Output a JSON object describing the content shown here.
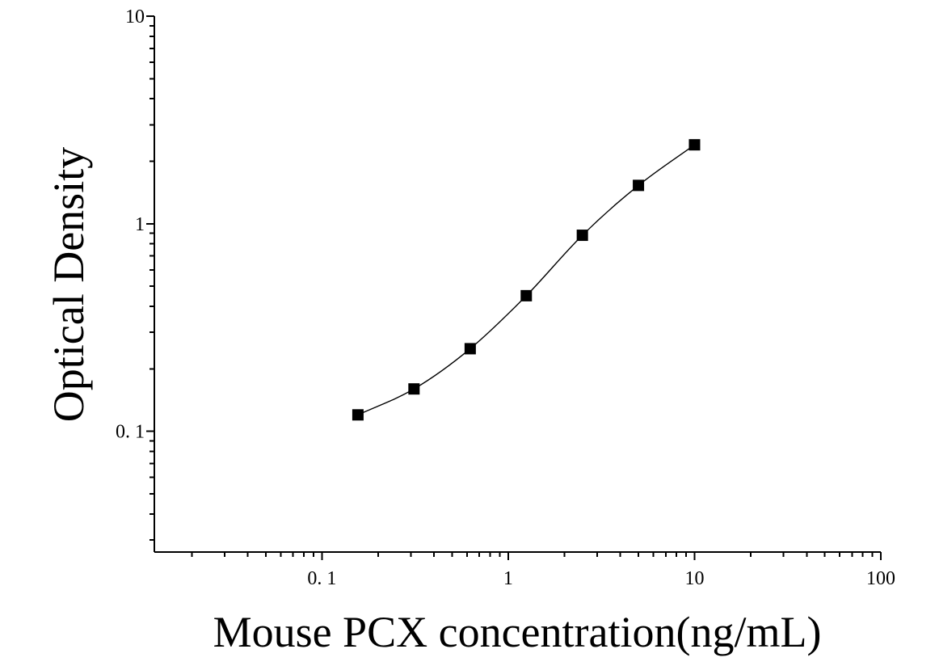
{
  "chart_data": {
    "type": "scatter",
    "title": "",
    "xlabel": "Mouse PCX concentration(ng/mL)",
    "ylabel": "Optical Density",
    "xscale": "log",
    "yscale": "log",
    "xlim": [
      0.0126,
      100
    ],
    "ylim": [
      0.0262,
      10
    ],
    "x_ticks": [
      {
        "value": 0.1,
        "label": "0. 1"
      },
      {
        "value": 1,
        "label": "1"
      },
      {
        "value": 10,
        "label": "10"
      },
      {
        "value": 100,
        "label": "100"
      }
    ],
    "y_ticks": [
      {
        "value": 0.1,
        "label": "0. 1"
      },
      {
        "value": 1,
        "label": "1"
      },
      {
        "value": 10,
        "label": "10"
      }
    ],
    "grid": false,
    "legend": "none",
    "series": [
      {
        "marker": "square",
        "color": "#000000",
        "x": [
          0.156,
          0.312,
          0.625,
          1.25,
          2.5,
          5,
          10
        ],
        "y": [
          0.12,
          0.16,
          0.25,
          0.45,
          0.88,
          1.53,
          2.4
        ]
      }
    ],
    "fit_curve": true
  }
}
